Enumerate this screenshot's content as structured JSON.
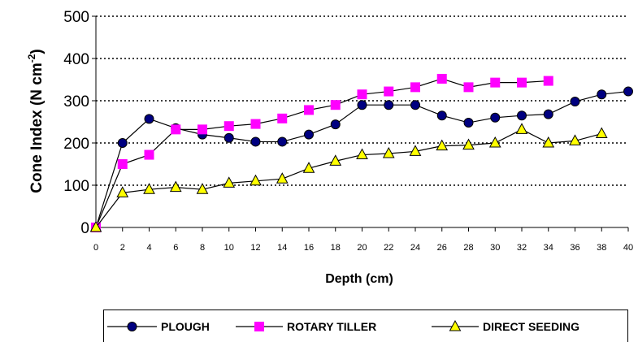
{
  "chart_data": {
    "type": "line",
    "title": "",
    "xlabel": "Depth (cm)",
    "ylabel": "Cone Index (N cm",
    "ylabel_sup": "-2",
    "ylabel_close": ")",
    "xlim": [
      0,
      40
    ],
    "ylim": [
      0,
      500
    ],
    "x_ticks": [
      "0",
      "2",
      "4",
      "6",
      "8",
      "10",
      "12",
      "14",
      "16",
      "18",
      "20",
      "22",
      "24",
      "26",
      "28",
      "30",
      "32",
      "34",
      "36",
      "38",
      "40"
    ],
    "y_ticks": [
      "0",
      "100",
      "200",
      "300",
      "400",
      "500"
    ],
    "grid": "horizontal dotted",
    "legend_position": "bottom",
    "series": [
      {
        "name": "PLOUGH",
        "marker": "circle",
        "color": "#000080",
        "line_color": "#000000",
        "x": [
          0,
          2,
          4,
          6,
          8,
          10,
          12,
          14,
          16,
          18,
          20,
          22,
          24,
          26,
          28,
          30,
          32,
          34,
          36,
          38,
          40
        ],
        "y": [
          0,
          200,
          257,
          235,
          220,
          212,
          203,
          203,
          220,
          244,
          290,
          290,
          290,
          265,
          248,
          260,
          265,
          268,
          298,
          315,
          322
        ]
      },
      {
        "name": "ROTARY TILLER",
        "marker": "square",
        "color": "#FF00FF",
        "line_color": "#000000",
        "x": [
          0,
          2,
          4,
          6,
          8,
          10,
          12,
          14,
          16,
          18,
          20,
          22,
          24,
          26,
          28,
          30,
          32,
          34
        ],
        "y": [
          0,
          150,
          172,
          232,
          232,
          240,
          245,
          258,
          278,
          290,
          315,
          322,
          332,
          352,
          332,
          343,
          343,
          347
        ]
      },
      {
        "name": "DIRECT SEEDING",
        "marker": "triangle",
        "color": "#FFFF00",
        "line_color": "#000000",
        "x": [
          0,
          2,
          4,
          6,
          8,
          10,
          12,
          14,
          16,
          18,
          20,
          22,
          24,
          26,
          28,
          30,
          32,
          34,
          36,
          38
        ],
        "y": [
          0,
          82,
          90,
          95,
          90,
          105,
          110,
          115,
          140,
          157,
          172,
          175,
          180,
          193,
          195,
          200,
          232,
          200,
          205,
          222
        ]
      }
    ]
  }
}
